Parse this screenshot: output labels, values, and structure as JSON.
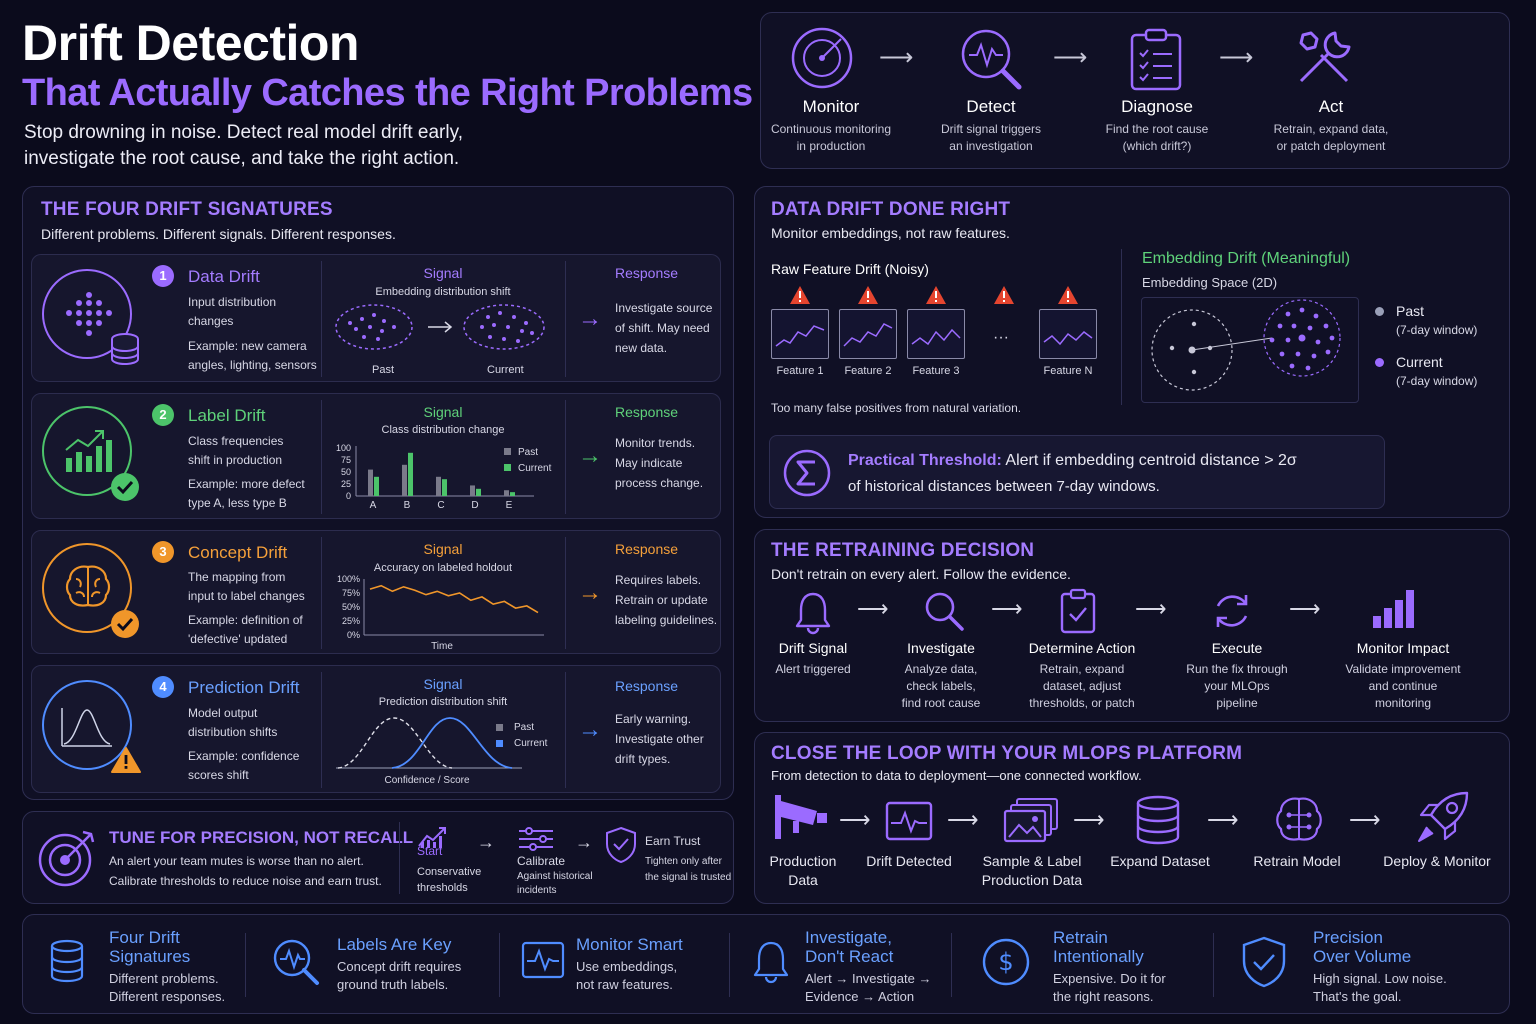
{
  "header": {
    "title": "Drift Detection",
    "subtitle": "That Actually Catches the Right Problems",
    "intro_1": "Stop drowning in noise. Detect real model drift early,",
    "intro_2": "investigate the root cause, and take the right action."
  },
  "flow": [
    {
      "title": "Monitor",
      "d1": "Continuous monitoring",
      "d2": "in production",
      "icon": "radar-icon"
    },
    {
      "title": "Detect",
      "d1": "Drift signal triggers",
      "d2": "an investigation",
      "icon": "magnifier-pulse-icon"
    },
    {
      "title": "Diagnose",
      "d1": "Find the root cause",
      "d2": "(which drift?)",
      "icon": "clipboard-checklist-icon"
    },
    {
      "title": "Act",
      "d1": "Retrain, expand data,",
      "d2": "or patch deployment",
      "icon": "tools-icon"
    }
  ],
  "signatures": {
    "title": "THE FOUR DRIFT SIGNATURES",
    "subtitle": "Different problems. Different signals. Different responses.",
    "signal_label": "Signal",
    "response_label": "Response",
    "items": [
      {
        "num": "1",
        "name": "Data Drift",
        "d1": "Input distribution",
        "d2": "changes",
        "e1": "Example: new camera",
        "e2": "angles, lighting, sensors",
        "signal": "Embedding distribution shift",
        "past": "Past",
        "current": "Current",
        "r1": "Investigate source",
        "r2": "of shift. May need",
        "r3": "new data.",
        "color": "#9b6bff"
      },
      {
        "num": "2",
        "name": "Label Drift",
        "d1": "Class frequencies",
        "d2": "shift in production",
        "e1": "Example: more defect",
        "e2": "type A, less type B",
        "signal": "Class distribution change",
        "r1": "Monitor trends.",
        "r2": "May indicate",
        "r3": "process change.",
        "color": "#4cc46a"
      },
      {
        "num": "3",
        "name": "Concept Drift",
        "d1": "The mapping from",
        "d2": "input to label changes",
        "e1": "Example: definition of",
        "e2": "'defective' updated",
        "signal": "Accuracy on labeled holdout",
        "xlabel": "Time",
        "r1": "Requires labels.",
        "r2": "Retrain or update",
        "r3": "labeling guidelines.",
        "color": "#f0962a"
      },
      {
        "num": "4",
        "name": "Prediction Drift",
        "d1": "Model output",
        "d2": "distribution shifts",
        "e1": "Example: confidence",
        "e2": "scores shift",
        "signal": "Prediction distribution shift",
        "xlabel": "Confidence / Score",
        "past": "Past",
        "current": "Current",
        "r1": "Early warning.",
        "r2": "Investigate other",
        "r3": "drift types.",
        "color": "#4f8cff"
      }
    ]
  },
  "label_chart": {
    "type": "bar",
    "categories": [
      "A",
      "B",
      "C",
      "D",
      "E"
    ],
    "series": [
      {
        "name": "Past",
        "values": [
          55,
          65,
          40,
          22,
          12
        ]
      },
      {
        "name": "Current",
        "values": [
          40,
          90,
          35,
          15,
          8
        ]
      }
    ],
    "yticks": [
      "100",
      "75",
      "50",
      "25",
      "0"
    ],
    "ylim": [
      0,
      100
    ]
  },
  "concept_chart": {
    "type": "line",
    "yticks": [
      "100%",
      "75%",
      "50%",
      "25%",
      "0%"
    ],
    "values": [
      82,
      88,
      78,
      86,
      80,
      72,
      78,
      70,
      75,
      62,
      68,
      55,
      60,
      48,
      52,
      40
    ],
    "ylim": [
      0,
      100
    ]
  },
  "tune": {
    "title": "TUNE FOR PRECISION, NOT RECALL",
    "t1": "An alert your team mutes is worse than no alert.",
    "t2": "Calibrate thresholds to reduce noise and earn trust.",
    "start_word": "Start",
    "s1_a": "Conservative",
    "s1_b": "thresholds",
    "s2_a": "Calibrate",
    "s2_b": "Against historical",
    "s2_c": "incidents",
    "s3_a": "Earn Trust",
    "s3_b": "Tighten only after",
    "s3_c": "the signal is trusted"
  },
  "data_drift": {
    "title": "DATA DRIFT DONE RIGHT",
    "subtitle": "Monitor embeddings, not raw features.",
    "raw_title": "Raw Feature Drift (Noisy)",
    "features": [
      "Feature 1",
      "Feature 2",
      "Feature 3",
      "Feature N"
    ],
    "ellipsis": "···",
    "noise_note": "Too many false positives from natural variation.",
    "emb_title": "Embedding Drift (Meaningful)",
    "emb_sub": "Embedding Space (2D)",
    "past": "Past",
    "past_w": "(7-day window)",
    "current": "Current",
    "current_w": "(7-day window)",
    "thr_label": "Practical Threshold:",
    "thr_1": " Alert if embedding centroid distance > 2σ",
    "thr_2": "of historical distances between 7-day windows."
  },
  "retrain": {
    "title": "THE RETRAINING DECISION",
    "subtitle": "Don't retrain on every alert. Follow the evidence.",
    "steps": [
      {
        "t": "Drift Signal",
        "a": "Alert triggered",
        "b": "",
        "c": ""
      },
      {
        "t": "Investigate",
        "a": "Analyze data,",
        "b": "check labels,",
        "c": "find root cause"
      },
      {
        "t": "Determine Action",
        "a": "Retrain, expand",
        "b": "dataset, adjust",
        "c": "thresholds, or patch"
      },
      {
        "t": "Execute",
        "a": "Run the fix through",
        "b": "your MLOps",
        "c": "pipeline"
      },
      {
        "t": "Monitor Impact",
        "a": "Validate improvement",
        "b": "and continue",
        "c": "monitoring"
      }
    ]
  },
  "loop": {
    "title": "CLOSE THE LOOP WITH YOUR MLOPS PLATFORM",
    "subtitle": "From detection to data to deployment—one connected workflow.",
    "steps": [
      {
        "a": "Production",
        "b": "Data"
      },
      {
        "a": "Drift Detected",
        "b": ""
      },
      {
        "a": "Sample & Label",
        "b": "Production Data"
      },
      {
        "a": "Expand Dataset",
        "b": ""
      },
      {
        "a": "Retrain Model",
        "b": ""
      },
      {
        "a": "Deploy & Monitor",
        "b": ""
      }
    ]
  },
  "footer": [
    {
      "t1": "Four Drift",
      "t2": "Signatures",
      "d1": "Different problems.",
      "d2": "Different responses."
    },
    {
      "t1": "Labels Are Key",
      "t2": "",
      "d1": "Concept drift requires",
      "d2": "ground truth labels."
    },
    {
      "t1": "Monitor Smart",
      "t2": "",
      "d1": "Use embeddings,",
      "d2": "not raw features."
    },
    {
      "t1": "Investigate,",
      "t2": "Don't React",
      "d1": "Alert → Investigate →",
      "d2": "Evidence → Action"
    },
    {
      "t1": "Retrain",
      "t2": "Intentionally",
      "d1": "Expensive. Do it for",
      "d2": "the right reasons."
    },
    {
      "t1": "Precision",
      "t2": "Over Volume",
      "d1": "High signal. Low noise.",
      "d2": "That's the goal."
    }
  ],
  "colors": {
    "accent": "#9b6bff",
    "green": "#4cc46a",
    "orange": "#f0962a",
    "blue": "#4f8cff",
    "warn": "#e5452f"
  }
}
